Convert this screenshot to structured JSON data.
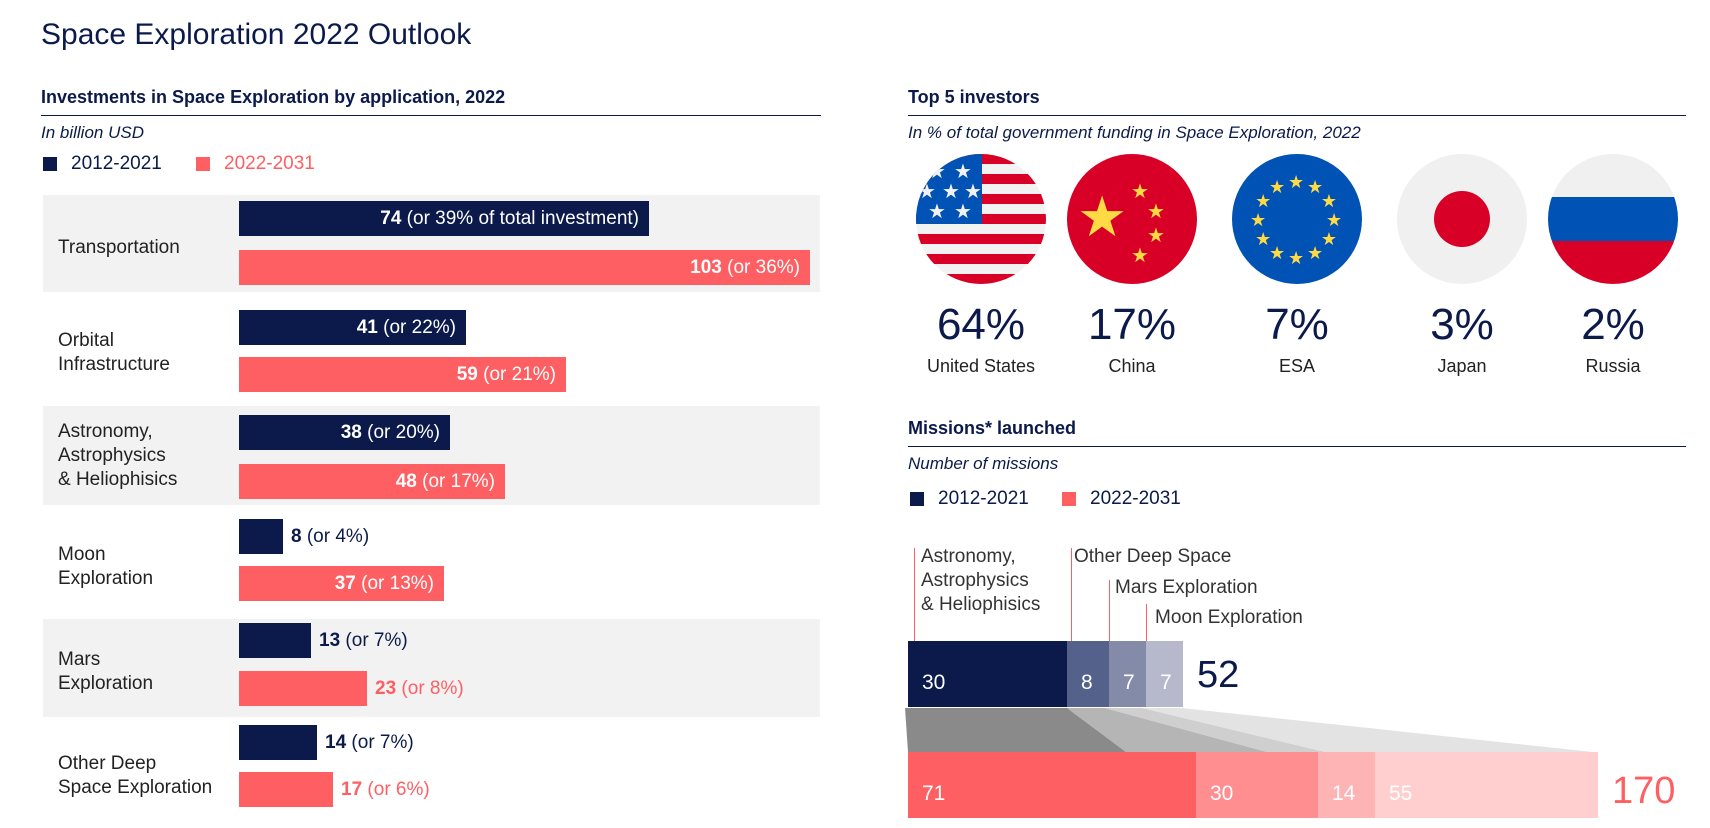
{
  "title": "Space Exploration 2022 Outlook",
  "investments": {
    "heading": "Investments in Space Exploration by application, 2022",
    "subtitle": "In billion USD",
    "legend": [
      "2012-2021",
      "2022-2031"
    ],
    "categories": [
      {
        "name": "Transportation",
        "v1": "74",
        "p1": " (or 39% of total investment)",
        "v2": "103",
        "p2": " (or 36%)"
      },
      {
        "name": "Orbital\nInfrastructure",
        "v1": "41",
        "p1": " (or 22%)",
        "v2": "59",
        "p2": " (or 21%)"
      },
      {
        "name": "Astronomy,\nAstrophysics\n& Heliophisics",
        "v1": "38",
        "p1": " (or 20%)",
        "v2": "48",
        "p2": " (or 17%)"
      },
      {
        "name": "Moon\nExploration",
        "v1": "8",
        "p1": " (or 4%)",
        "v2": "37",
        "p2": " (or 13%)"
      },
      {
        "name": "Mars\nExploration",
        "v1": "13",
        "p1": " (or 7%)",
        "v2": "23",
        "p2": " (or 8%)"
      },
      {
        "name": "Other Deep\nSpace Exploration",
        "v1": "14",
        "p1": " (or 7%)",
        "v2": "17",
        "p2": " (or 6%)"
      }
    ]
  },
  "investors": {
    "heading": "Top 5 investors",
    "subtitle": "In % of total government funding in Space Exploration, 2022",
    "items": [
      {
        "pct": "64%",
        "name": "United States"
      },
      {
        "pct": "17%",
        "name": "China"
      },
      {
        "pct": "7%",
        "name": "ESA"
      },
      {
        "pct": "3%",
        "name": "Japan"
      },
      {
        "pct": "2%",
        "name": "Russia"
      }
    ]
  },
  "missions": {
    "heading": "Missions* launched",
    "subtitle": "Number of missions",
    "legend": [
      "2012-2021",
      "2022-2031"
    ],
    "labels": [
      "Astronomy,\nAstrophysics\n& Heliophisics",
      "Other Deep Space",
      "Mars Exploration",
      "Moon Exploration"
    ],
    "period1": [
      "30",
      "8",
      "7",
      "7"
    ],
    "period1_total": "52",
    "period2": [
      "71",
      "30",
      "14",
      "55"
    ],
    "period2_total": "170"
  },
  "chart_data": [
    {
      "type": "bar",
      "title": "Investments in Space Exploration by application, 2022",
      "ylabel": "In billion USD",
      "categories": [
        "Transportation",
        "Orbital Infrastructure",
        "Astronomy, Astrophysics & Heliophisics",
        "Moon Exploration",
        "Mars Exploration",
        "Other Deep Space Exploration"
      ],
      "series": [
        {
          "name": "2012-2021",
          "values": [
            74,
            41,
            38,
            8,
            13,
            14
          ],
          "share_pct": [
            39,
            22,
            20,
            4,
            7,
            7
          ]
        },
        {
          "name": "2022-2031",
          "values": [
            103,
            59,
            48,
            37,
            23,
            17
          ],
          "share_pct": [
            36,
            21,
            17,
            13,
            8,
            6
          ]
        }
      ],
      "xlim": [
        0,
        103
      ]
    },
    {
      "type": "table",
      "title": "Top 5 investors",
      "categories": [
        "United States",
        "China",
        "ESA",
        "Japan",
        "Russia"
      ],
      "values": [
        64,
        17,
        7,
        3,
        2
      ]
    },
    {
      "type": "bar",
      "title": "Missions* launched",
      "ylabel": "Number of missions",
      "categories": [
        "Astronomy, Astrophysics & Heliophisics",
        "Other Deep Space",
        "Mars Exploration",
        "Moon Exploration"
      ],
      "series": [
        {
          "name": "2012-2021",
          "values": [
            30,
            8,
            7,
            7
          ],
          "total": 52
        },
        {
          "name": "2022-2031",
          "values": [
            71,
            30,
            14,
            55
          ],
          "total": 170
        }
      ]
    }
  ],
  "colors": {
    "navy": "#0b1a4a",
    "coral": "#fe5f63",
    "band": "#f2f2f2"
  }
}
